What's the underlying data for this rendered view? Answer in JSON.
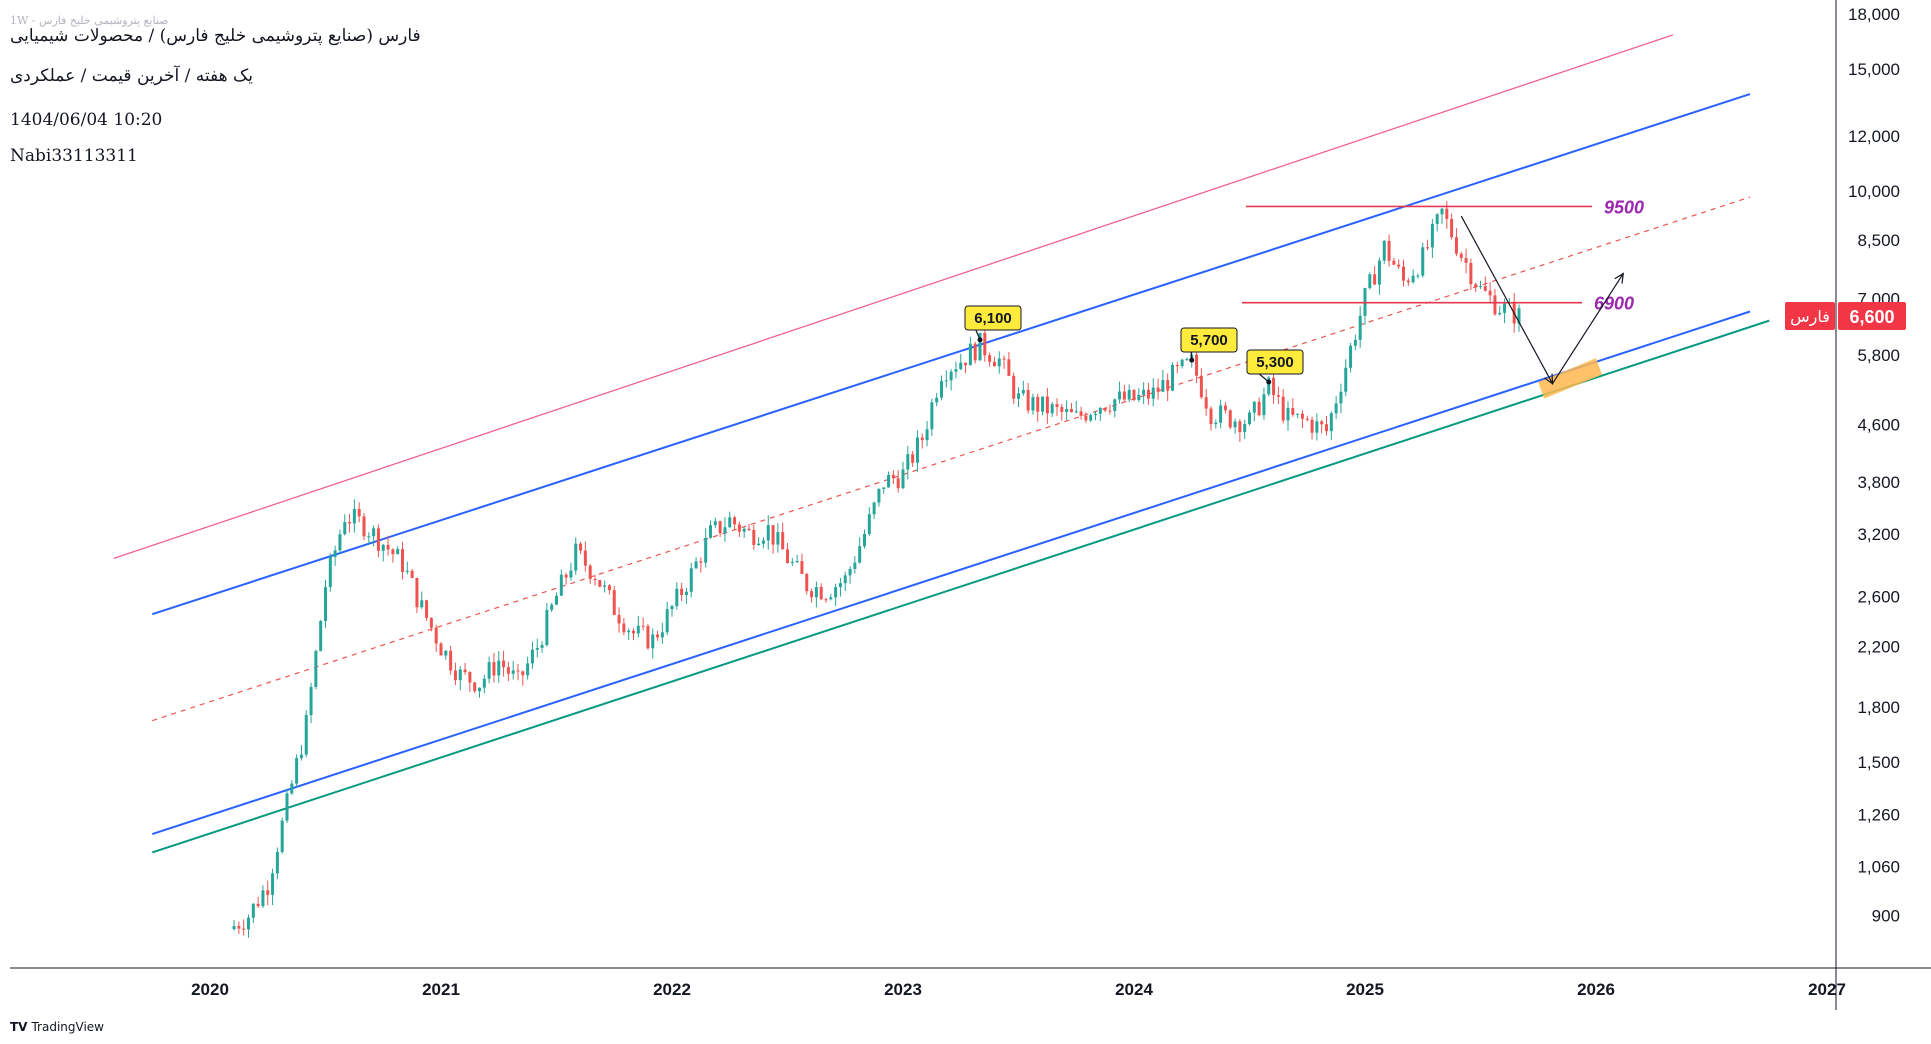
{
  "header": {
    "watermark": "صنایع پتروشیمی خلیج فارس - 1W",
    "title": "فارس (صنایع پتروشیمی خلیج فارس) / محصولات شیمیایی",
    "subtitle": "یک هفته / آخرین قیمت / عملکردی",
    "datetime": "1404/06/04 10:20",
    "author": "Nabi33113311"
  },
  "branding": {
    "logo_text": "TradingView"
  },
  "colors": {
    "up": "#26a69a",
    "down": "#ef5350",
    "channel_blue": "#2962ff",
    "pink_line": "#f06292",
    "green_line": "#089981",
    "level_line": "#e53950",
    "level_text": "#9c27b0",
    "target_zone": "#ffb74d",
    "price_tag": "#f23645",
    "callout": "#ffeb3b"
  },
  "chart_data": {
    "type": "candlestick",
    "y_scale": "log",
    "ylim": [
      800,
      18000
    ],
    "y_ticks": [
      "18,000",
      "15,000",
      "12,000",
      "10,000",
      "8,500",
      "7,000",
      "5,800",
      "4,600",
      "3,800",
      "3,200",
      "2,600",
      "2,200",
      "1,800",
      "1,500",
      "1,260",
      "1,060",
      "900"
    ],
    "x_ticks": [
      "2020",
      "2021",
      "2022",
      "2023",
      "2024",
      "2025",
      "2026",
      "2027"
    ],
    "last_price": {
      "symbol": "فارس",
      "value": "6,600"
    },
    "price_path": [
      [
        "2020-02",
        860
      ],
      [
        "2020-03",
        900
      ],
      [
        "2020-04",
        1000
      ],
      [
        "2020-05",
        1300
      ],
      [
        "2020-06",
        1700
      ],
      [
        "2020-07",
        2700
      ],
      [
        "2020-08",
        3400
      ],
      [
        "2020-09",
        3300
      ],
      [
        "2020-10",
        3100
      ],
      [
        "2020-11",
        2900
      ],
      [
        "2020-12",
        2500
      ],
      [
        "2021-01",
        2200
      ],
      [
        "2021-02",
        2000
      ],
      [
        "2021-03",
        1950
      ],
      [
        "2021-04",
        2100
      ],
      [
        "2021-05",
        1950
      ],
      [
        "2021-06",
        2200
      ],
      [
        "2021-07",
        2600
      ],
      [
        "2021-08",
        3000
      ],
      [
        "2021-09",
        2800
      ],
      [
        "2021-10",
        2500
      ],
      [
        "2021-11",
        2300
      ],
      [
        "2021-12",
        2250
      ],
      [
        "2022-01",
        2500
      ],
      [
        "2022-02",
        2800
      ],
      [
        "2022-03",
        3200
      ],
      [
        "2022-04",
        3350
      ],
      [
        "2022-05",
        3200
      ],
      [
        "2022-06",
        3250
      ],
      [
        "2022-07",
        2950
      ],
      [
        "2022-08",
        2700
      ],
      [
        "2022-09",
        2650
      ],
      [
        "2022-10",
        2750
      ],
      [
        "2022-11",
        3200
      ],
      [
        "2022-12",
        3800
      ],
      [
        "2023-01",
        3900
      ],
      [
        "2023-02",
        4400
      ],
      [
        "2023-03",
        5500
      ],
      [
        "2023-04",
        5700
      ],
      [
        "2023-05",
        6000
      ],
      [
        "2023-06",
        5700
      ],
      [
        "2023-07",
        5000
      ],
      [
        "2023-08",
        4900
      ],
      [
        "2023-09",
        4800
      ],
      [
        "2023-10",
        4700
      ],
      [
        "2023-11",
        4900
      ],
      [
        "2023-12",
        5000
      ],
      [
        "2024-01",
        5000
      ],
      [
        "2024-02",
        5100
      ],
      [
        "2024-03",
        5400
      ],
      [
        "2024-04",
        5650
      ],
      [
        "2024-05",
        4800
      ],
      [
        "2024-06",
        4700
      ],
      [
        "2024-07",
        4650
      ],
      [
        "2024-08",
        5200
      ],
      [
        "2024-09",
        4700
      ],
      [
        "2024-10",
        4650
      ],
      [
        "2024-11",
        4500
      ],
      [
        "2024-12",
        5600
      ],
      [
        "2025-01",
        7000
      ],
      [
        "2025-02",
        8300
      ],
      [
        "2025-03",
        7400
      ],
      [
        "2025-04",
        8000
      ],
      [
        "2025-05",
        9300
      ],
      [
        "2025-06",
        8100
      ],
      [
        "2025-07",
        7200
      ],
      [
        "2025-08",
        6800
      ],
      [
        "2025-09",
        6600
      ]
    ],
    "price_callouts": [
      "6,100",
      "5,700",
      "5,300"
    ],
    "levels": [
      {
        "label": "9500",
        "value": 9500
      },
      {
        "label": "6900",
        "value": 6900
      }
    ],
    "channel_lines": [
      {
        "name": "upper-pink",
        "from": [
          "2019-08",
          2950
        ],
        "to": [
          "2026-05",
          16800
        ]
      },
      {
        "name": "upper-blue",
        "from": [
          "2019-10",
          2450
        ],
        "to": [
          "2026-09",
          13800
        ]
      },
      {
        "name": "mid-dashed",
        "from": [
          "2019-10",
          1720
        ],
        "to": [
          "2026-09",
          9800
        ]
      },
      {
        "name": "lower-blue",
        "from": [
          "2019-10",
          1180
        ],
        "to": [
          "2026-09",
          6700
        ]
      },
      {
        "name": "lower-green",
        "from": [
          "2019-10",
          1110
        ],
        "to": [
          "2026-10",
          6500
        ]
      }
    ],
    "projection": {
      "from": [
        "2025-06",
        9200
      ],
      "mid": [
        "2025-11",
        5450
      ],
      "to": [
        "2026-02",
        7600
      ]
    },
    "target_zone": {
      "from": "2025-10",
      "to": "2026-01",
      "value_low": 5150,
      "value_high": 5700
    }
  }
}
